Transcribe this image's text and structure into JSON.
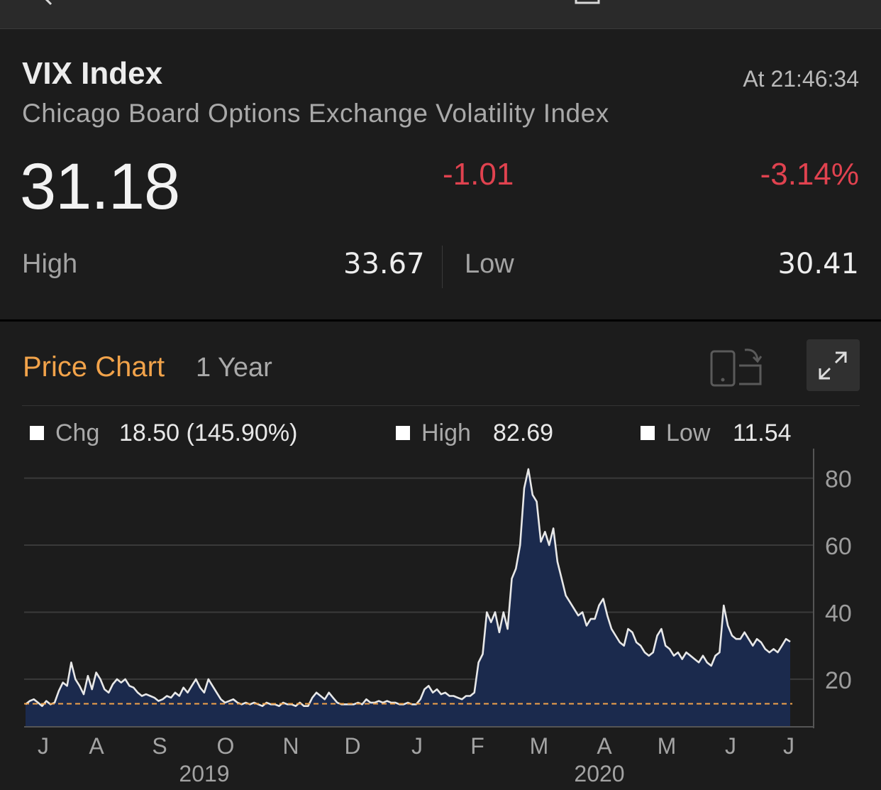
{
  "header": {
    "title": "VIX Index",
    "time": "At 21:46:34",
    "subtitle": "Chicago Board Options Exchange Volatility Index"
  },
  "quote": {
    "price": "31.18",
    "change": "-1.01",
    "change_pct": "-3.14%",
    "high_label": "High",
    "high_value": "33.67",
    "low_label": "Low",
    "low_value": "30.41"
  },
  "chart_panel": {
    "title": "Price Chart",
    "range": "1 Year",
    "legend": {
      "chg_label": "Chg",
      "chg_value": "18.50 (145.90%)",
      "high_label": "High",
      "high_value": "82.69",
      "low_label": "Low",
      "low_value": "11.54"
    }
  },
  "colors": {
    "accent": "#f2a34a",
    "negative": "#e0424f",
    "area_fill": "#1b2a4d",
    "line": "#e8e8e8",
    "reference_line": "#f2a34a"
  },
  "icons": [
    "back-icon",
    "share-icon",
    "rotate-device-icon",
    "expand-icon"
  ],
  "chart_data": {
    "type": "area",
    "title": "",
    "xlabel": "",
    "ylabel": "",
    "ylim": [
      6,
      85
    ],
    "y_ticks": [
      20,
      40,
      60,
      80
    ],
    "x_tick_labels": [
      "J",
      "A",
      "S",
      "O",
      "N",
      "D",
      "J",
      "F",
      "M",
      "A",
      "M",
      "J",
      "J"
    ],
    "year_labels": [
      "2019",
      "2020"
    ],
    "grid": true,
    "reference_line": 12.68,
    "series": [
      {
        "values": [
          12.5,
          13.5,
          14,
          13,
          12,
          13.5,
          12.5,
          13,
          16.5,
          19,
          18,
          25,
          20,
          18,
          15.5,
          21,
          17,
          22,
          20,
          17,
          16,
          18.5,
          20,
          19,
          20,
          18,
          17.5,
          16,
          15,
          15.5,
          15,
          14.5,
          13.5,
          14,
          15,
          14.5,
          16,
          15,
          17.5,
          16,
          18,
          20,
          17.5,
          16,
          20,
          18,
          16,
          14,
          13,
          13.5,
          14,
          13,
          12.5,
          13,
          12.5,
          13,
          12.5,
          12,
          13,
          12.5,
          12.5,
          12,
          13,
          12.5,
          12.5,
          12,
          13,
          12,
          12,
          14.5,
          16,
          15,
          14,
          16,
          14.5,
          13,
          12.5,
          12.5,
          12.5,
          12.5,
          13,
          12.5,
          14,
          13,
          13,
          13.5,
          13,
          13.5,
          13,
          13,
          12.5,
          12.5,
          13,
          12.5,
          12.5,
          14,
          17,
          18,
          16,
          17,
          15.5,
          16,
          15,
          15,
          14.5,
          14,
          15,
          15,
          16,
          25,
          27.5,
          40,
          37,
          40,
          34,
          40,
          35,
          50,
          53,
          60,
          77,
          82.69,
          75,
          73,
          61,
          64,
          60,
          65,
          55,
          50,
          45,
          43,
          41,
          39,
          40,
          36,
          38,
          38,
          42,
          44,
          39,
          35,
          33,
          31,
          30,
          35,
          34,
          31,
          30,
          28,
          27,
          28,
          33,
          35,
          30,
          29,
          27,
          28,
          26,
          28,
          27,
          26,
          25,
          27,
          25,
          24,
          27,
          28,
          42,
          36,
          33,
          32,
          32,
          34,
          32,
          30,
          32,
          31,
          29,
          28,
          29,
          28,
          30,
          32,
          31.18
        ]
      }
    ]
  }
}
